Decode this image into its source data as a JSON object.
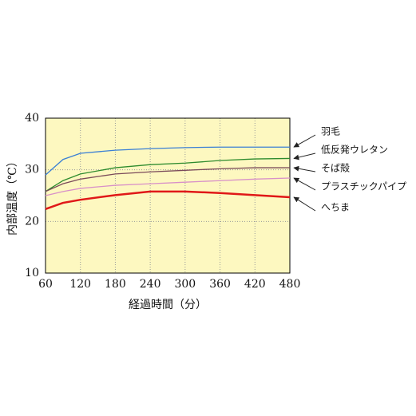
{
  "chart_data": {
    "type": "line",
    "x_label": "経過時間（分）",
    "y_label": "内部温度（℃）",
    "x": [
      60,
      90,
      120,
      180,
      240,
      300,
      360,
      420,
      480
    ],
    "xlim": [
      60,
      480
    ],
    "xticks": [
      60,
      120,
      180,
      240,
      300,
      360,
      420,
      480
    ],
    "ylim": [
      10,
      40
    ],
    "yticks": [
      10,
      20,
      30,
      40
    ],
    "grid": true,
    "series": [
      {
        "name": "羽毛",
        "color": "#3a7fd5",
        "values": [
          29,
          32,
          33.2,
          33.8,
          34.1,
          34.3,
          34.4,
          34.4,
          34.4
        ]
      },
      {
        "name": "低反発ウレタン",
        "color": "#2e8b2e",
        "values": [
          25.8,
          27.9,
          29.2,
          30.4,
          31,
          31.3,
          31.8,
          32.1,
          32.2
        ]
      },
      {
        "name": "そば殻",
        "color": "#7a4a5a",
        "values": [
          25.8,
          27.3,
          28.2,
          29.2,
          29.6,
          29.9,
          30.2,
          30.4,
          30.4
        ]
      },
      {
        "name": "プラスチックパイプ",
        "color": "#d890c8",
        "values": [
          25,
          25.8,
          26.4,
          27,
          27.3,
          27.6,
          27.9,
          28.2,
          28.4
        ]
      },
      {
        "name": "へちま",
        "color": "#e01818",
        "values": [
          22.4,
          23.6,
          24.2,
          25.1,
          25.8,
          25.8,
          25.5,
          25.1,
          24.7
        ]
      }
    ]
  }
}
